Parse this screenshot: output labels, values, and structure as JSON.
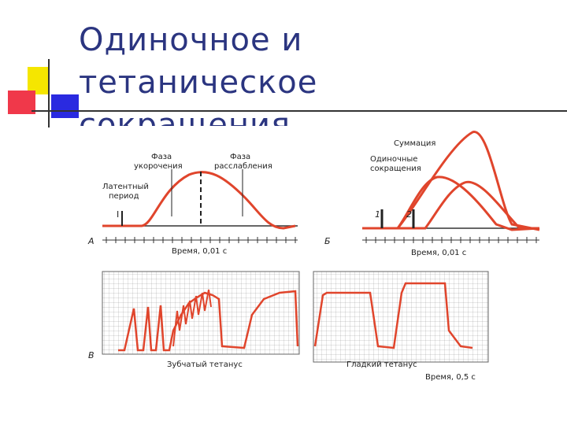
{
  "title_lines": [
    "Одиночное и",
    "тетаническое",
    "сокращения"
  ],
  "figure": {
    "panel_a": {
      "letter": "А",
      "phase_shortening": [
        "Фаза",
        "укорочения"
      ],
      "phase_relaxation": [
        "Фаза",
        "расслабления"
      ],
      "latent_period": [
        "Латентный",
        "период"
      ],
      "stimulus": "I",
      "time_label": "Время, 0,01 с"
    },
    "panel_b": {
      "letter": "Б",
      "summation": "Суммация",
      "single_contractions": [
        "Одиночные",
        "сокращения"
      ],
      "stimulus_1": "1",
      "stimulus_2": "2",
      "time_label": "Время, 0,01 с"
    },
    "panel_c": {
      "letter": "В",
      "serrated_tetanus": "Зубчатый тетанус",
      "smooth_tetanus": "Гладкий тетанус",
      "time_label": "Время, 0,5 с"
    }
  }
}
